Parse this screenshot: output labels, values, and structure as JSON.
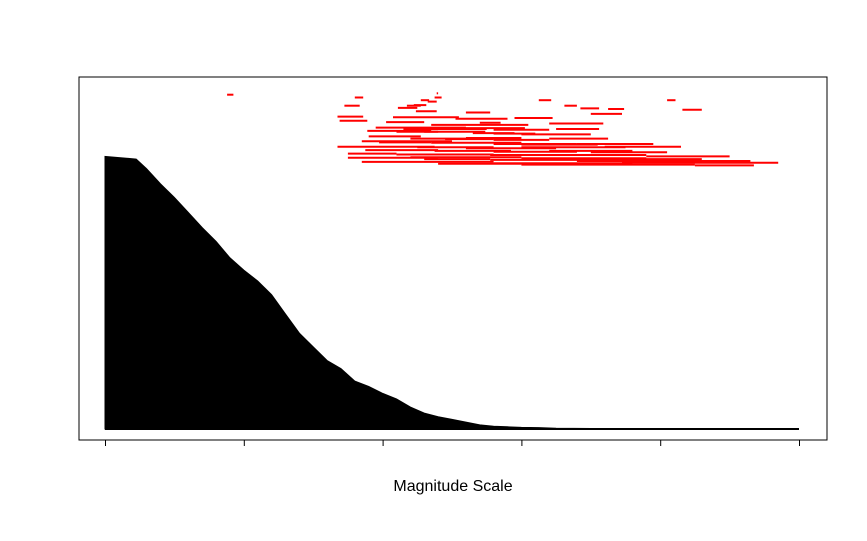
{
  "chart_data": {
    "type": "area",
    "title": "",
    "xlabel": "Magnitude Scale",
    "ylabel": "",
    "xlim": [
      0,
      1
    ],
    "ylim": [
      0,
      1
    ],
    "grid": false,
    "legend": "none",
    "x_tick_count": 6,
    "x_tick_labels": [],
    "colors": {
      "area": "#000000",
      "intervals": "#ff0000",
      "frame": "#000000"
    },
    "series": [
      {
        "type": "area",
        "x": [
          0.0,
          0.045,
          0.06,
          0.08,
          0.1,
          0.12,
          0.14,
          0.16,
          0.18,
          0.2,
          0.22,
          0.24,
          0.26,
          0.28,
          0.3,
          0.32,
          0.34,
          0.36,
          0.38,
          0.4,
          0.42,
          0.44,
          0.46,
          0.48,
          0.5,
          0.52,
          0.54,
          0.56,
          0.58,
          0.6,
          0.625,
          0.65,
          0.7,
          0.8,
          0.9,
          1.0
        ],
        "y": [
          0.995,
          0.985,
          0.95,
          0.895,
          0.845,
          0.79,
          0.735,
          0.685,
          0.625,
          0.58,
          0.54,
          0.49,
          0.42,
          0.35,
          0.3,
          0.25,
          0.22,
          0.175,
          0.155,
          0.13,
          0.11,
          0.08,
          0.058,
          0.045,
          0.035,
          0.025,
          0.015,
          0.01,
          0.008,
          0.006,
          0.005,
          0.003,
          0.002,
          0.001,
          0.0,
          0.0
        ]
      },
      {
        "type": "intervals",
        "name": "",
        "intervals": [
          [
            0.176,
            0.185,
            1.22
          ],
          [
            0.478,
            0.48,
            1.225
          ],
          [
            0.36,
            0.372,
            1.21
          ],
          [
            0.475,
            0.485,
            1.21
          ],
          [
            0.455,
            0.467,
            1.2
          ],
          [
            0.465,
            0.478,
            1.195
          ],
          [
            0.81,
            0.822,
            1.2
          ],
          [
            0.625,
            0.643,
            1.2
          ],
          [
            0.345,
            0.367,
            1.18
          ],
          [
            0.435,
            0.455,
            1.18
          ],
          [
            0.445,
            0.463,
            1.182
          ],
          [
            0.662,
            0.68,
            1.18
          ],
          [
            0.422,
            0.45,
            1.172
          ],
          [
            0.685,
            0.712,
            1.17
          ],
          [
            0.725,
            0.748,
            1.168
          ],
          [
            0.832,
            0.86,
            1.165
          ],
          [
            0.448,
            0.478,
            1.16
          ],
          [
            0.52,
            0.555,
            1.155
          ],
          [
            0.7,
            0.745,
            1.15
          ],
          [
            0.335,
            0.372,
            1.14
          ],
          [
            0.415,
            0.51,
            1.138
          ],
          [
            0.505,
            0.58,
            1.132
          ],
          [
            0.59,
            0.645,
            1.135
          ],
          [
            0.338,
            0.378,
            1.125
          ],
          [
            0.405,
            0.46,
            1.12
          ],
          [
            0.54,
            0.57,
            1.118
          ],
          [
            0.47,
            0.61,
            1.11
          ],
          [
            0.64,
            0.718,
            1.115
          ],
          [
            0.39,
            0.52,
            1.1
          ],
          [
            0.43,
            0.55,
            1.095
          ],
          [
            0.5,
            0.605,
            1.098
          ],
          [
            0.56,
            0.64,
            1.092
          ],
          [
            0.65,
            0.712,
            1.095
          ],
          [
            0.378,
            0.47,
            1.088
          ],
          [
            0.42,
            0.48,
            1.085
          ],
          [
            0.46,
            0.548,
            1.085
          ],
          [
            0.53,
            0.59,
            1.08
          ],
          [
            0.56,
            0.62,
            1.078
          ],
          [
            0.6,
            0.7,
            1.075
          ],
          [
            0.38,
            0.455,
            1.068
          ],
          [
            0.44,
            0.52,
            1.06
          ],
          [
            0.49,
            0.56,
            1.058
          ],
          [
            0.52,
            0.6,
            1.062
          ],
          [
            0.56,
            0.64,
            1.055
          ],
          [
            0.64,
            0.725,
            1.06
          ],
          [
            0.37,
            0.5,
            1.05
          ],
          [
            0.395,
            0.47,
            1.046
          ],
          [
            0.47,
            0.6,
            1.045
          ],
          [
            0.56,
            0.68,
            1.04
          ],
          [
            0.6,
            0.71,
            1.038
          ],
          [
            0.68,
            0.79,
            1.04
          ],
          [
            0.335,
            0.475,
            1.03
          ],
          [
            0.45,
            0.56,
            1.028
          ],
          [
            0.52,
            0.65,
            1.025
          ],
          [
            0.6,
            0.75,
            1.028
          ],
          [
            0.72,
            0.83,
            1.03
          ],
          [
            0.375,
            0.48,
            1.018
          ],
          [
            0.475,
            0.585,
            1.015
          ],
          [
            0.56,
            0.68,
            1.012
          ],
          [
            0.64,
            0.76,
            1.015
          ],
          [
            0.7,
            0.81,
            1.01
          ],
          [
            0.35,
            0.42,
            1.005
          ],
          [
            0.42,
            0.56,
            1.002
          ],
          [
            0.555,
            0.7,
            1.0
          ],
          [
            0.65,
            0.78,
            1.0
          ],
          [
            0.78,
            0.9,
            0.995
          ],
          [
            0.44,
            0.6,
            0.992
          ],
          [
            0.6,
            0.78,
            0.988
          ],
          [
            0.7,
            0.86,
            0.985
          ],
          [
            0.35,
            0.48,
            0.99
          ],
          [
            0.46,
            0.555,
            0.985
          ],
          [
            0.555,
            0.72,
            0.982
          ],
          [
            0.68,
            0.93,
            0.978
          ],
          [
            0.37,
            0.56,
            0.975
          ],
          [
            0.56,
            0.76,
            0.97
          ],
          [
            0.745,
            0.97,
            0.972
          ],
          [
            0.48,
            0.6,
            0.968
          ],
          [
            0.6,
            0.85,
            0.965
          ],
          [
            0.85,
            0.935,
            0.962
          ]
        ]
      }
    ]
  }
}
